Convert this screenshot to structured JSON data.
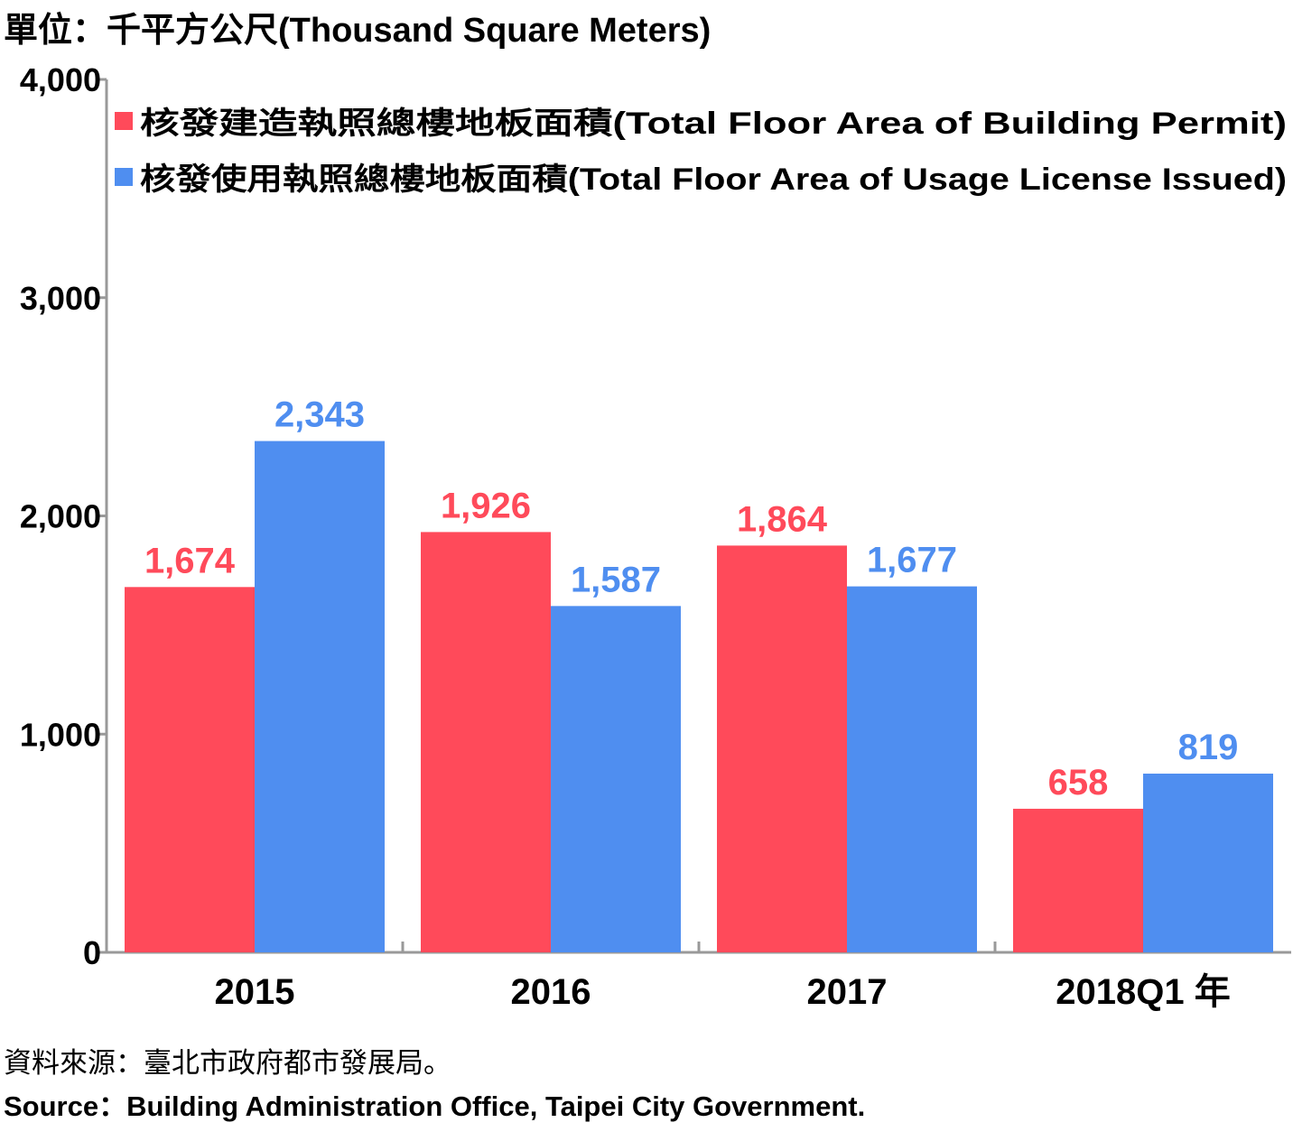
{
  "unit_label": "單位：千平方公尺(Thousand Square Meters)",
  "source_zh": "資料來源：臺北市政府都市發展局。",
  "source_en": "Source：Building Administration Office, Taipei City Government.",
  "x_unit_suffix": "年",
  "colors": {
    "permit": "#ff4a5a",
    "usage": "#4f8ef0",
    "axis": "#999999"
  },
  "chart_data": {
    "type": "bar",
    "categories": [
      "2015",
      "2016",
      "2017",
      "2018Q1"
    ],
    "series": [
      {
        "name": "核發建造執照總樓地板面積(Total Floor Area of Building Permit)",
        "values": [
          1674,
          1926,
          1864,
          658
        ],
        "labels": [
          "1,674",
          "1,926",
          "1,864",
          "658"
        ],
        "color": "#ff4a5a"
      },
      {
        "name": "核發使用執照總樓地板面積(Total Floor Area of Usage License Issued)",
        "values": [
          2343,
          1587,
          1677,
          819
        ],
        "labels": [
          "2,343",
          "1,587",
          "1,677",
          "819"
        ],
        "color": "#4f8ef0"
      }
    ],
    "y_ticks": [
      0,
      1000,
      2000,
      3000,
      4000
    ],
    "y_tick_labels": [
      "0",
      "1,000",
      "2,000",
      "3,000",
      "4,000"
    ],
    "ylim": [
      0,
      4000
    ],
    "grid": false,
    "legend_position": "top-left"
  }
}
